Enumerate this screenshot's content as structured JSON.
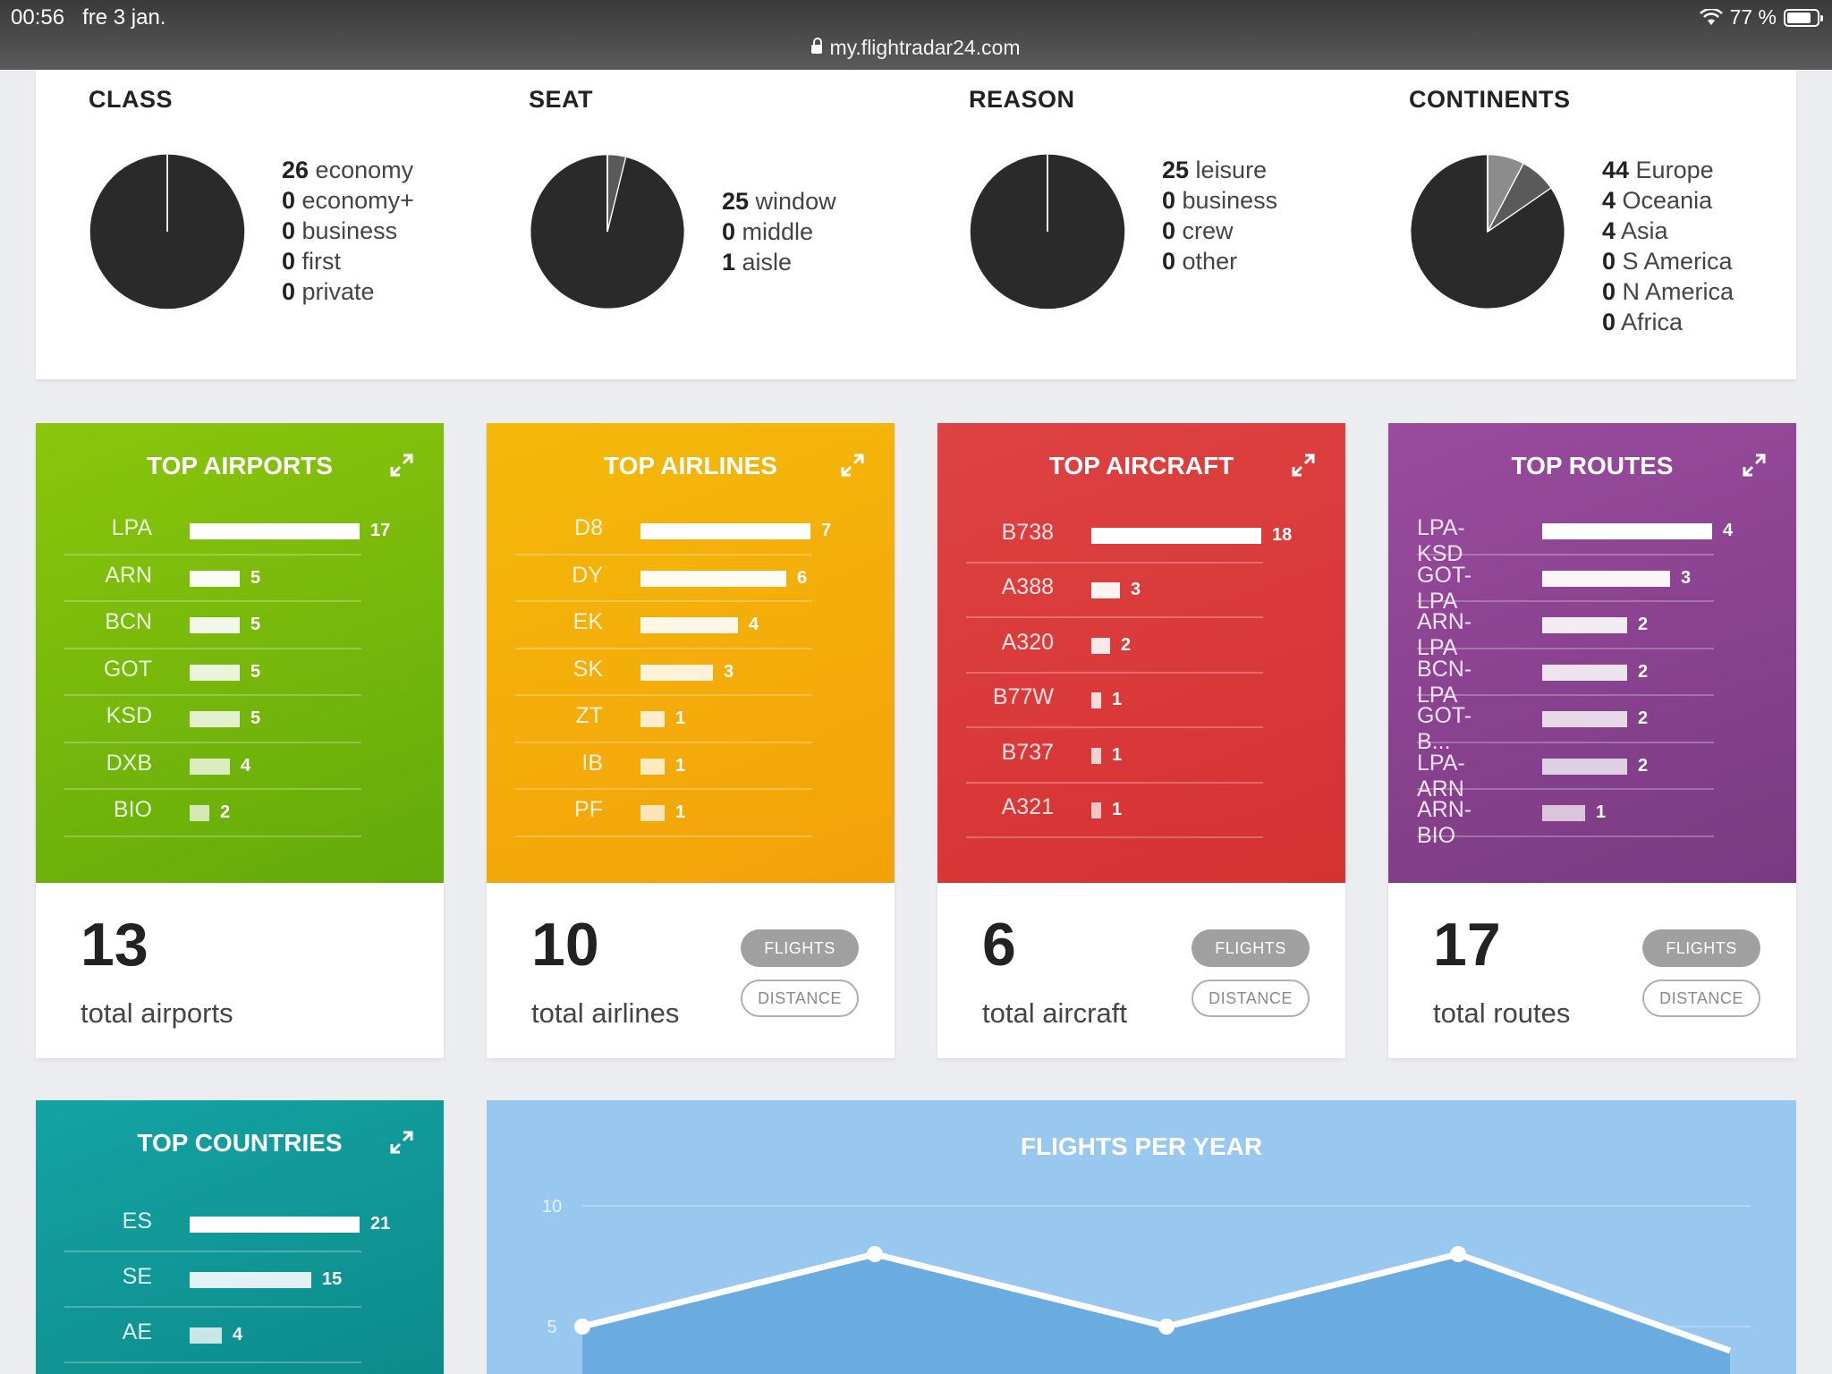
{
  "status_bar": {
    "time": "00:56",
    "date": "fre 3 jan.",
    "url": "my.flightradar24.com",
    "battery": "77 %"
  },
  "stats": [
    {
      "title": "CLASS",
      "items": [
        {
          "num": "26",
          "label": " economy"
        },
        {
          "num": "0",
          "label": " economy+"
        },
        {
          "num": "0",
          "label": " business"
        },
        {
          "num": "0",
          "label": " first"
        },
        {
          "num": "0",
          "label": " private"
        }
      ],
      "slices": [
        26
      ]
    },
    {
      "title": "SEAT",
      "items": [
        {
          "num": "25",
          "label": " window"
        },
        {
          "num": "0",
          "label": " middle"
        },
        {
          "num": "1",
          "label": " aisle"
        }
      ],
      "slices": [
        25,
        1
      ]
    },
    {
      "title": "REASON",
      "items": [
        {
          "num": "25",
          "label": " leisure"
        },
        {
          "num": "0",
          "label": " business"
        },
        {
          "num": "0",
          "label": " crew"
        },
        {
          "num": "0",
          "label": " other"
        }
      ],
      "slices": [
        25
      ]
    },
    {
      "title": "CONTINENTS",
      "items": [
        {
          "num": "44",
          "label": " Europe"
        },
        {
          "num": "4",
          "label": " Oceania"
        },
        {
          "num": "4",
          "label": " Asia"
        },
        {
          "num": "0",
          "label": " S America"
        },
        {
          "num": "0",
          "label": " N America"
        },
        {
          "num": "0",
          "label": " Africa"
        }
      ],
      "slices": [
        44,
        4,
        4
      ]
    }
  ],
  "pie_colors": [
    "#2a2a2a",
    "#5a5a5a",
    "#8c8c8c"
  ],
  "cards": [
    {
      "title": "TOP AIRPORTS",
      "color": "green",
      "rows": [
        {
          "label": "LPA",
          "value": 17
        },
        {
          "label": "ARN",
          "value": 5
        },
        {
          "label": "BCN",
          "value": 5
        },
        {
          "label": "GOT",
          "value": 5
        },
        {
          "label": "KSD",
          "value": 5
        },
        {
          "label": "DXB",
          "value": 4
        },
        {
          "label": "BIO",
          "value": 2
        }
      ],
      "total": "13",
      "total_label": "total airports",
      "buttons": false
    },
    {
      "title": "TOP AIRLINES",
      "color": "yellow",
      "rows": [
        {
          "label": "D8",
          "value": 7
        },
        {
          "label": "DY",
          "value": 6
        },
        {
          "label": "EK",
          "value": 4
        },
        {
          "label": "SK",
          "value": 3
        },
        {
          "label": "ZT",
          "value": 1
        },
        {
          "label": "IB",
          "value": 1
        },
        {
          "label": "PF",
          "value": 1
        }
      ],
      "total": "10",
      "total_label": "total airlines",
      "buttons": true
    },
    {
      "title": "TOP AIRCRAFT",
      "color": "red",
      "rows": [
        {
          "label": "B738",
          "value": 18
        },
        {
          "label": "A388",
          "value": 3
        },
        {
          "label": "A320",
          "value": 2
        },
        {
          "label": "B77W",
          "value": 1
        },
        {
          "label": "B737",
          "value": 1
        },
        {
          "label": "A321",
          "value": 1
        }
      ],
      "total": "6",
      "total_label": "total aircraft",
      "buttons": true
    },
    {
      "title": "TOP ROUTES",
      "color": "purple",
      "rows": [
        {
          "label": "LPA-KSD",
          "value": 4
        },
        {
          "label": "GOT-LPA",
          "value": 3
        },
        {
          "label": "ARN-LPA",
          "value": 2
        },
        {
          "label": "BCN-LPA",
          "value": 2
        },
        {
          "label": "GOT-B...",
          "value": 2
        },
        {
          "label": "LPA-ARN",
          "value": 2
        },
        {
          "label": "ARN-BIO",
          "value": 1
        }
      ],
      "total": "17",
      "total_label": "total routes",
      "buttons": true
    }
  ],
  "buttons": {
    "flights": "FLIGHTS",
    "distance": "DISTANCE"
  },
  "countries": {
    "title": "TOP COUNTRIES",
    "rows": [
      {
        "label": "ES",
        "value": 21
      },
      {
        "label": "SE",
        "value": 15
      },
      {
        "label": "AE",
        "value": 4
      }
    ]
  },
  "chart_data": {
    "type": "area",
    "title": "FLIGHTS PER YEAR",
    "y_ticks": [
      "10",
      "5"
    ],
    "ylim": [
      0,
      10
    ],
    "values": [
      5,
      8,
      5,
      8,
      4
    ],
    "grid": true
  }
}
